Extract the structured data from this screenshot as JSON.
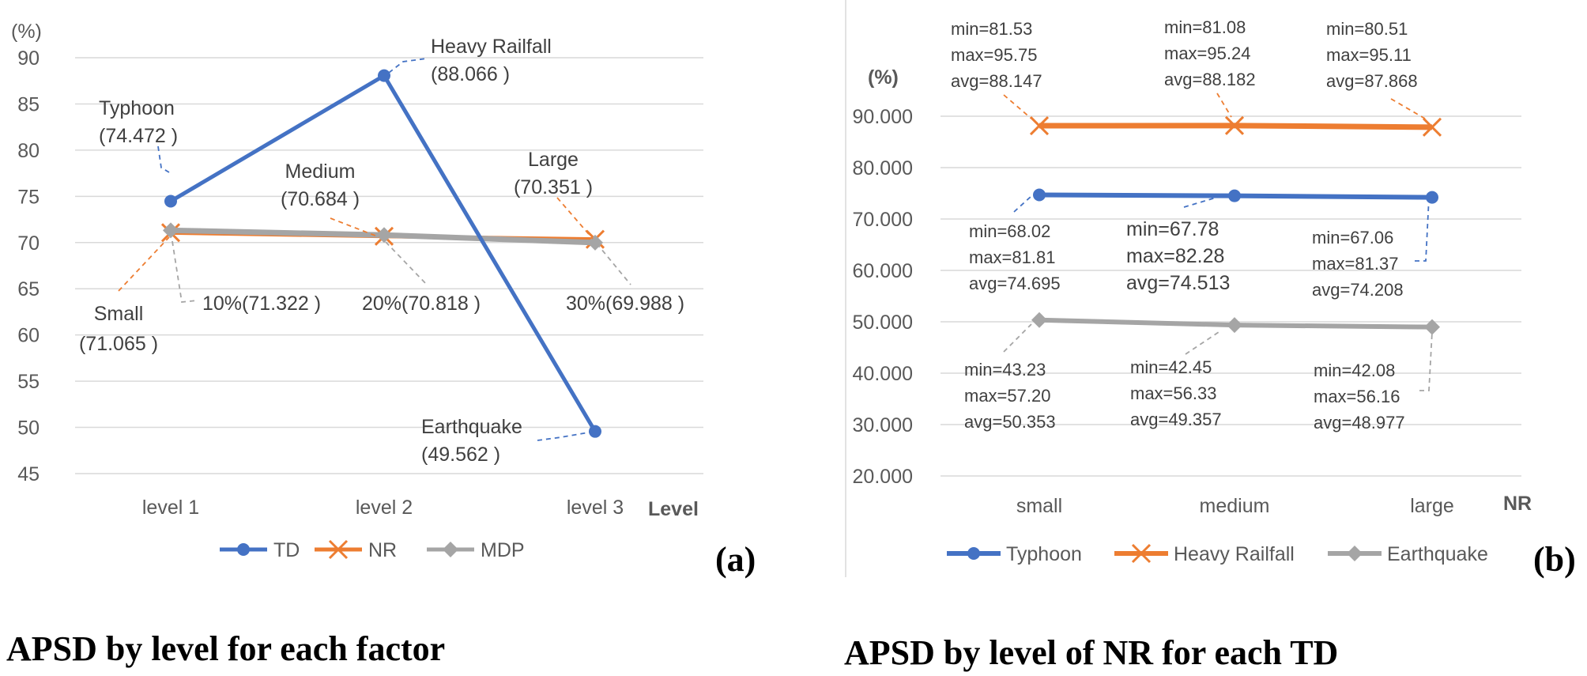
{
  "chart_data": [
    {
      "type": "line",
      "panel_label": "(a)",
      "caption": "APSD by level for each factor",
      "ylabel": "(%)",
      "xlabel": "Level",
      "ylim": [
        45,
        90
      ],
      "yticks": [
        "45",
        "50",
        "55",
        "60",
        "65",
        "70",
        "75",
        "80",
        "85",
        "90"
      ],
      "categories": [
        "level 1",
        "level 2",
        "level 3"
      ],
      "series": [
        {
          "name": "TD",
          "color": "#4472c4",
          "marker": "circle",
          "values": [
            74.472,
            88.066,
            49.562
          ]
        },
        {
          "name": "NR",
          "color": "#ed7d31",
          "marker": "x",
          "values": [
            71.065,
            70.684,
            70.351
          ]
        },
        {
          "name": "MDP",
          "color": "#a5a5a5",
          "marker": "diamond",
          "values": [
            71.322,
            70.818,
            69.988
          ]
        }
      ],
      "annotations": {
        "typhoon": [
          "Typhoon",
          "(74.472 )"
        ],
        "heavy_railfall": [
          "Heavy Railfall",
          "(88.066 )"
        ],
        "earthquake": [
          "Earthquake",
          "(49.562 )"
        ],
        "small": [
          "Small",
          "(71.065 )"
        ],
        "medium": [
          "Medium",
          "(70.684 )"
        ],
        "large": [
          "Large",
          "(70.351 )"
        ],
        "mdp_10": "10%(71.322 )",
        "mdp_20": "20%(70.818 )",
        "mdp_30": "30%(69.988 )"
      }
    },
    {
      "type": "line",
      "panel_label": "(b)",
      "caption": "APSD by level of NR for each TD",
      "ylabel": "(%)",
      "xlabel": "NR",
      "ylim": [
        20,
        90
      ],
      "yticks": [
        "20.000",
        "30.000",
        "40.000",
        "50.000",
        "60.000",
        "70.000",
        "80.000",
        "90.000"
      ],
      "categories": [
        "small",
        "medium",
        "large"
      ],
      "series": [
        {
          "name": "Typhoon",
          "color": "#4472c4",
          "marker": "circle",
          "values": [
            74.695,
            74.513,
            74.208
          ]
        },
        {
          "name": "Heavy Railfall",
          "color": "#ed7d31",
          "marker": "x",
          "values": [
            88.147,
            88.182,
            87.868
          ]
        },
        {
          "name": "Earthquake",
          "color": "#a5a5a5",
          "marker": "diamond",
          "values": [
            50.353,
            49.357,
            48.977
          ]
        }
      ],
      "annotations": {
        "hr_small": [
          "min=81.53",
          "max=95.75",
          "avg=88.147"
        ],
        "hr_medium": [
          "min=81.08",
          "max=95.24",
          "avg=88.182"
        ],
        "hr_large": [
          "min=80.51",
          "max=95.11",
          "avg=87.868"
        ],
        "ty_small": [
          "min=68.02",
          "max=81.81",
          "avg=74.695"
        ],
        "ty_medium": [
          "min=67.78",
          "max=82.28",
          "avg=74.513"
        ],
        "ty_large": [
          "min=67.06",
          "max=81.37",
          "avg=74.208"
        ],
        "eq_small": [
          "min=43.23",
          "max=57.20",
          "avg=50.353"
        ],
        "eq_medium": [
          "min=42.45",
          "max=56.33",
          "avg=49.357"
        ],
        "eq_large": [
          "min=42.08",
          "max=56.16",
          "avg=48.977"
        ]
      }
    }
  ]
}
